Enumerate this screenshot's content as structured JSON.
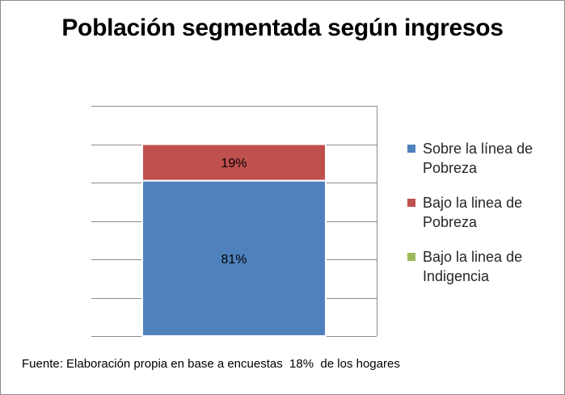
{
  "chart_data": {
    "type": "bar",
    "stacked": true,
    "title": "Población segmentada según ingresos",
    "categories": [
      ""
    ],
    "series": [
      {
        "name": "Sobre la línea de Pobreza",
        "values": [
          81
        ],
        "data_label": "81%",
        "color": "#4f81bd"
      },
      {
        "name": "Bajo la linea de Pobreza",
        "values": [
          19
        ],
        "data_label": "19%",
        "color": "#c0504d"
      },
      {
        "name": "Bajo la linea de Indigencia",
        "values": [
          0
        ],
        "data_label": "",
        "color": "#9bbb59"
      }
    ],
    "ylim": [
      0,
      120
    ],
    "y_gridlines": [
      0,
      20,
      40,
      60,
      80,
      100,
      120
    ],
    "y_axis_labels_visible": false,
    "grid": true,
    "legend_position": "right"
  },
  "footer": {
    "source": "Fuente: Elaboración propia en base a encuestas  18%  de los hogares"
  }
}
